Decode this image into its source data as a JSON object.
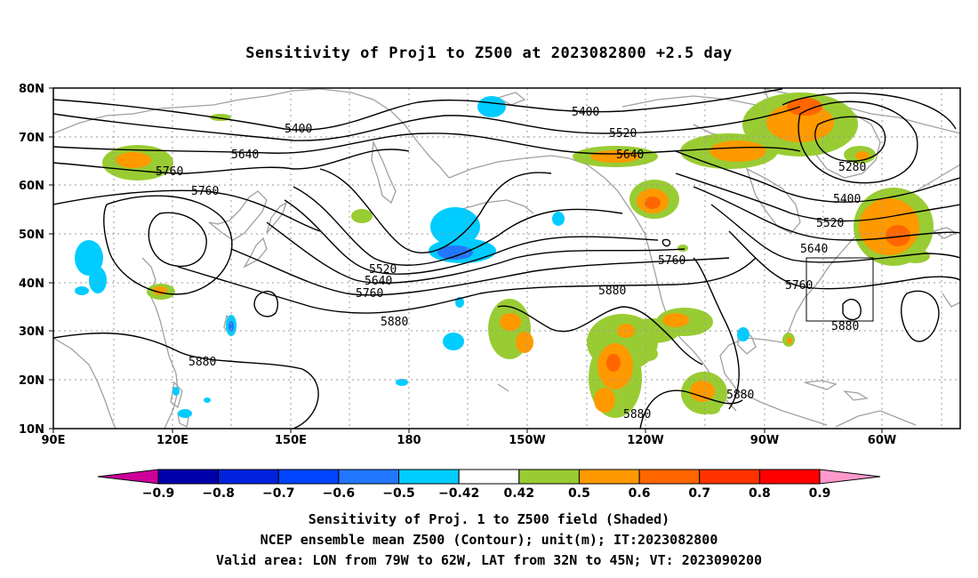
{
  "title": "Sensitivity of Proj1 to Z500 at 2023082800 +2.5 day",
  "captions": {
    "line1": "Sensitivity of Proj. 1 to Z500 field (Shaded)",
    "line2": "NCEP ensemble mean Z500 (Contour); unit(m); IT:2023082800",
    "line3": "Valid area: LON from 79W to 62W, LAT from 32N to 45N; VT: 2023090200"
  },
  "map": {
    "lon_range": [
      90,
      310
    ],
    "lat_range": [
      10,
      80
    ],
    "x_ticks": [
      "90E",
      "120E",
      "150E",
      "180",
      "150W",
      "120W",
      "90W",
      "60W"
    ],
    "y_ticks": [
      "80N",
      "70N",
      "60N",
      "50N",
      "40N",
      "30N",
      "20N",
      "10N"
    ],
    "valid_area": {
      "lon": [
        -79,
        -62
      ],
      "lat": [
        32,
        45
      ]
    }
  },
  "contour_labels": [
    "5400",
    "5400",
    "5520",
    "5640",
    "5640",
    "5760",
    "5760",
    "5520",
    "5640",
    "5760",
    "5880",
    "5880",
    "5760",
    "5880",
    "5280",
    "5400",
    "5520",
    "5640",
    "5760",
    "5880",
    "5880",
    "5880"
  ],
  "colorbar": {
    "labels": [
      "−0.9",
      "−0.8",
      "−0.7",
      "−0.6",
      "−0.5",
      "−0.42",
      "0.42",
      "0.5",
      "0.6",
      "0.7",
      "0.8",
      "0.9"
    ],
    "colors": [
      "#0000aa",
      "#0022dd",
      "#0044ff",
      "#2277ff",
      "#00ccff",
      "#ffffff",
      "#99cc33",
      "#ff9900",
      "#ff6600",
      "#ff3300",
      "#ff0000"
    ],
    "low_end": "#cc0099",
    "high_end": "#ff99cc"
  },
  "colors": {
    "land_outline": "#a0a0a0",
    "grid": "#999999",
    "contour": "#000000"
  }
}
